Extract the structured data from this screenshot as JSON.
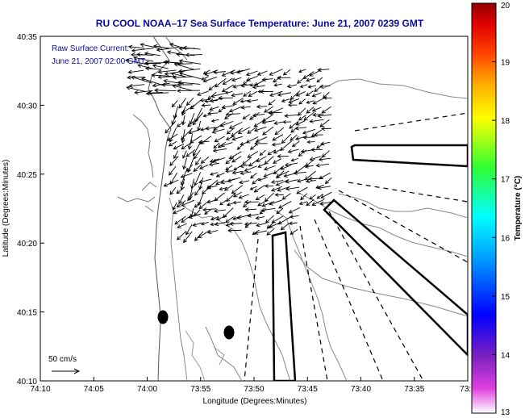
{
  "title": "RU COOL   NOAA–17  Sea Surface Temperature:  June 21, 2007 0239 GMT",
  "annotation": {
    "line1": "Raw Surface Current:",
    "line2": "June 21, 2007 02:00 GMT"
  },
  "scale_label": "50 cm/s",
  "xlabel": "Longitude (Degrees:Minutes)",
  "ylabel": "Latitude (Degrees:Minutes)",
  "x_ticks": [
    "74:10",
    "74:05",
    "74:00",
    "73:55",
    "73:50",
    "73:45",
    "73:40",
    "73:35",
    "73:3"
  ],
  "y_ticks": [
    "40:35",
    "40:30",
    "40:25",
    "40:20",
    "40:15",
    "40:10"
  ],
  "colorbar": {
    "label": "Temperature (°C)",
    "ticks": [
      "20",
      "19",
      "18",
      "17",
      "16",
      "15",
      "14",
      "13"
    ],
    "min": 13,
    "max": 20
  },
  "colors": {
    "title": "#0a0aa0",
    "land": "#ffffff",
    "coast": "#555555",
    "vectors": "#000000"
  }
}
